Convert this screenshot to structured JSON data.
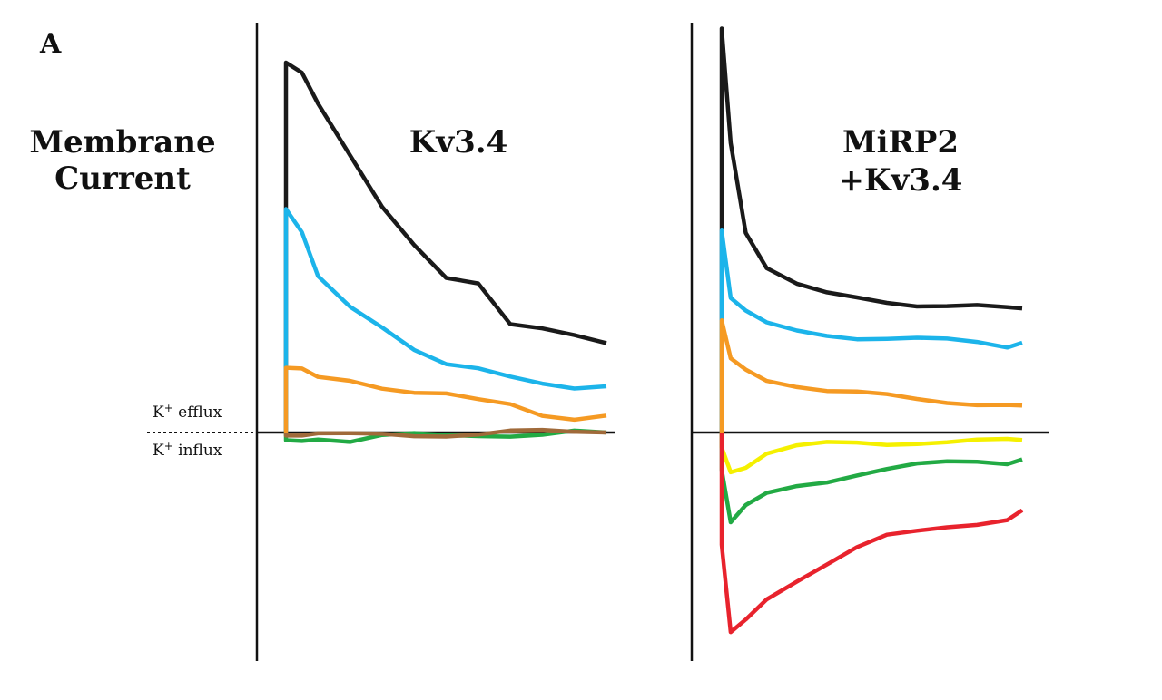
{
  "figure": {
    "panel_letter": "A",
    "ylabel_line1": "Membrane",
    "ylabel_line2": "Current",
    "efflux_label": "K+ efflux",
    "influx_label": "K+ influx",
    "colors": {
      "axis": "#111111",
      "black": "#1a1a1a",
      "blue": "#1cb4ea",
      "orange": "#f59a23",
      "yellow": "#f5f000",
      "green": "#22aa44",
      "red": "#e8232d",
      "brown": "#a06a3a"
    }
  },
  "chart_data": [
    {
      "type": "line",
      "title": "Kv3.4",
      "title_lines": [
        "Kv3.4"
      ],
      "xlabel": "",
      "ylabel": "Membrane Current",
      "x": [
        0,
        0.05,
        0.1,
        0.2,
        0.3,
        0.4,
        0.5,
        0.6,
        0.7,
        0.8,
        0.9,
        1.0
      ],
      "ylim": [
        -1.6,
        2.5
      ],
      "series": [
        {
          "color": "black",
          "values": [
            2.4,
            2.35,
            2.15,
            1.8,
            1.45,
            1.2,
            1.0,
            0.98,
            0.72,
            0.68,
            0.62,
            0.58
          ]
        },
        {
          "color": "blue",
          "values": [
            1.45,
            1.3,
            1.0,
            0.8,
            0.68,
            0.55,
            0.46,
            0.42,
            0.35,
            0.3,
            0.28,
            0.3
          ]
        },
        {
          "color": "orange",
          "values": [
            0.42,
            0.4,
            0.36,
            0.35,
            0.3,
            0.26,
            0.24,
            0.2,
            0.18,
            0.12,
            0.1,
            0.11
          ]
        },
        {
          "color": "green",
          "values": [
            -0.05,
            -0.04,
            -0.03,
            -0.06,
            -0.03,
            -0.02,
            -0.02,
            -0.01,
            -0.01,
            -0.01,
            0.0,
            0.0
          ]
        },
        {
          "color": "brown",
          "values": [
            -0.02,
            -0.02,
            -0.02,
            -0.02,
            -0.01,
            -0.01,
            -0.01,
            -0.01,
            0.0,
            0.0,
            0.0,
            0.0
          ]
        }
      ]
    },
    {
      "type": "line",
      "title": "MiRP2 +Kv3.4",
      "title_lines": [
        "MiRP2",
        "+Kv3.4"
      ],
      "xlabel": "",
      "ylabel": "Membrane Current",
      "x": [
        0,
        0.03,
        0.08,
        0.15,
        0.25,
        0.35,
        0.45,
        0.55,
        0.65,
        0.75,
        0.85,
        0.95,
        1.0
      ],
      "ylim": [
        -1.6,
        2.5
      ],
      "series": [
        {
          "color": "black",
          "values": [
            2.7,
            1.95,
            1.35,
            1.1,
            0.98,
            0.92,
            0.9,
            0.88,
            0.86,
            0.85,
            0.84,
            0.82,
            0.83
          ]
        },
        {
          "color": "blue",
          "values": [
            1.35,
            0.9,
            0.8,
            0.72,
            0.68,
            0.66,
            0.64,
            0.63,
            0.62,
            0.61,
            0.6,
            0.58,
            0.6
          ]
        },
        {
          "color": "orange",
          "values": [
            0.75,
            0.48,
            0.42,
            0.36,
            0.32,
            0.28,
            0.26,
            0.24,
            0.22,
            0.21,
            0.2,
            0.19,
            0.18
          ]
        },
        {
          "color": "yellow",
          "values": [
            -0.1,
            -0.25,
            -0.22,
            -0.14,
            -0.1,
            -0.08,
            -0.07,
            -0.07,
            -0.06,
            -0.06,
            -0.06,
            -0.06,
            -0.05
          ]
        },
        {
          "color": "green",
          "values": [
            -0.25,
            -0.6,
            -0.5,
            -0.42,
            -0.36,
            -0.32,
            -0.27,
            -0.24,
            -0.22,
            -0.21,
            -0.2,
            -0.2,
            -0.18
          ]
        },
        {
          "color": "red",
          "values": [
            -0.75,
            -1.35,
            -1.25,
            -1.1,
            -0.98,
            -0.88,
            -0.78,
            -0.7,
            -0.66,
            -0.62,
            -0.6,
            -0.58,
            -0.52
          ]
        }
      ]
    }
  ]
}
